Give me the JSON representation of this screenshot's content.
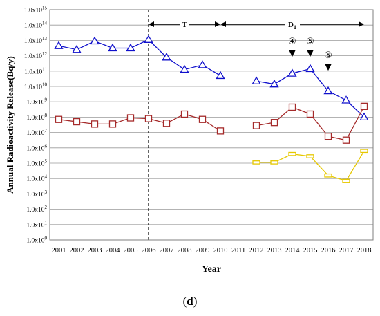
{
  "chart_data": {
    "type": "line",
    "xlabel": "Year",
    "ylabel": "Annual Radioactivity Release(Bq/y)",
    "y_scale": "log",
    "y_exp_range": [
      0,
      15
    ],
    "y_tick_mantissa": "1.0x10",
    "y_tick_exponents": [
      "0",
      "1",
      "2",
      "3",
      "4",
      "5",
      "6",
      "7",
      "8",
      "9",
      "10",
      "11",
      "12",
      "13",
      "14",
      "15"
    ],
    "x_categories": [
      "2001",
      "2002",
      "2003",
      "2004",
      "2005",
      "2006",
      "2007",
      "2008",
      "2009",
      "2010",
      "2011",
      "2012",
      "2013",
      "2014",
      "2015",
      "2016",
      "2017",
      "2018"
    ],
    "grid": "horizontal",
    "divider_year": "2006",
    "periods": [
      {
        "label": "T",
        "sub": "",
        "from": "2006",
        "to": "2010"
      },
      {
        "label": "D",
        "sub": "1",
        "from": "2010",
        "to": "2018"
      }
    ],
    "event_markers": [
      {
        "year": "2014",
        "label": "④",
        "y_exp": 12.2
      },
      {
        "year": "2015",
        "label": "⑤",
        "y_exp": 12.2
      },
      {
        "year": "2016",
        "label": "⑤",
        "y_exp": 11.3
      }
    ],
    "series": [
      {
        "marker": "triangle",
        "color": "#1010cc",
        "values": [
          12.65,
          12.4,
          12.95,
          12.5,
          12.5,
          13.05,
          11.9,
          11.1,
          11.4,
          10.7,
          null,
          10.35,
          10.15,
          10.85,
          11.15,
          9.7,
          9.1,
          8.0
        ]
      },
      {
        "marker": "square",
        "color": "#a52a2a",
        "values": [
          7.85,
          7.7,
          7.55,
          7.55,
          7.95,
          7.9,
          7.6,
          8.2,
          7.85,
          7.1,
          null,
          7.45,
          7.65,
          8.65,
          8.2,
          6.75,
          6.5,
          8.7
        ]
      },
      {
        "marker": "rect",
        "color": "#e6c800",
        "values": [
          null,
          null,
          null,
          null,
          null,
          null,
          null,
          null,
          null,
          null,
          null,
          5.05,
          5.05,
          5.6,
          5.45,
          4.2,
          3.85,
          5.8
        ]
      }
    ]
  },
  "panel_label": "d"
}
